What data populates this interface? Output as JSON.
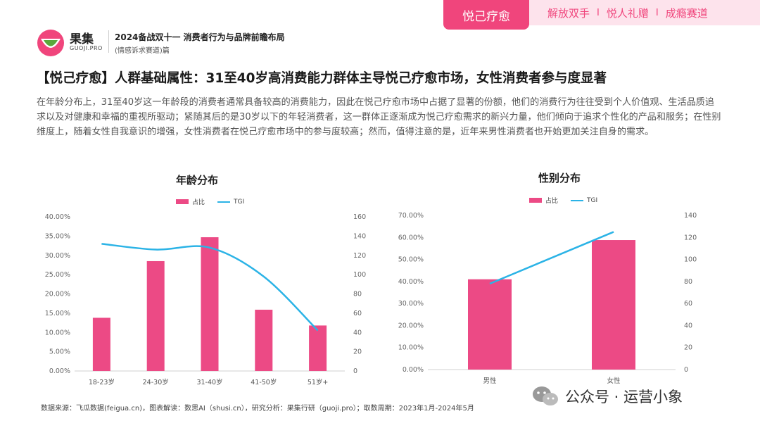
{
  "nav": {
    "active_tab": "悦己疗愈",
    "tabs": [
      "解放双手",
      "悦人礼赠",
      "成瘾赛道"
    ],
    "separator": "I"
  },
  "header": {
    "brand": "果集",
    "brand_en": "GUOJI.PRO",
    "report_title": "2024备战双十一 消费者行为与品牌前瞻布局",
    "report_sub": "(情感诉求赛道)篇"
  },
  "headline": "【悦己疗愈】人群基础属性：31至40岁高消费能力群体主导悦己疗愈市场，女性消费者参与度显著",
  "body_text": "在年龄分布上，31至40岁这一年龄段的消费者通常具备较高的消费能力，因此在悦己疗愈市场中占据了显著的份额，他们的消费行为往往受到个人价值观、生活品质追求以及对健康和幸福的重视所驱动；紧随其后的是30岁以下的年轻消费者，这一群体正逐渐成为悦己疗愈需求的新兴力量，他们倾向于追求个性化的产品和服务；在性别维度上，随着女性自我意识的增强，女性消费者在悦己疗愈市场中的参与度较高；然而，值得注意的是，近年来男性消费者也开始更加关注自身的需求。",
  "colors": {
    "accent": "#f0457c",
    "bar": "#ec4a85",
    "line": "#2bb3e6"
  },
  "chart_data": [
    {
      "type": "bar",
      "title": "年龄分布",
      "categories": [
        "18-23岁",
        "24-30岁",
        "31-40岁",
        "41-50岁",
        "51岁+"
      ],
      "series": [
        {
          "name": "占比",
          "type": "bar",
          "axis": "left",
          "values": [
            13.8,
            28.5,
            34.7,
            15.9,
            11.8
          ]
        },
        {
          "name": "TGI",
          "type": "line",
          "axis": "right",
          "values": [
            132,
            126,
            128,
            98,
            42
          ]
        }
      ],
      "ylim_left": [
        0,
        40
      ],
      "yticks_left": [
        "0.00%",
        "5.00%",
        "10.00%",
        "15.00%",
        "20.00%",
        "25.00%",
        "30.00%",
        "35.00%",
        "40.00%"
      ],
      "ylim_right": [
        0,
        160
      ],
      "yticks_right": [
        "0",
        "20",
        "40",
        "60",
        "80",
        "100",
        "120",
        "140",
        "160"
      ],
      "grid": false,
      "legend": "top-center"
    },
    {
      "type": "bar",
      "title": "性别分布",
      "categories": [
        "男性",
        "女性"
      ],
      "series": [
        {
          "name": "占比",
          "type": "bar",
          "axis": "left",
          "values": [
            41.0,
            58.8
          ]
        },
        {
          "name": "TGI",
          "type": "line",
          "axis": "right",
          "values": [
            78,
            125
          ]
        }
      ],
      "ylim_left": [
        0,
        70
      ],
      "yticks_left": [
        "0.00%",
        "10.00%",
        "20.00%",
        "30.00%",
        "40.00%",
        "50.00%",
        "60.00%",
        "70.00%"
      ],
      "ylim_right": [
        0,
        140
      ],
      "yticks_right": [
        "0",
        "20",
        "40",
        "60",
        "80",
        "100",
        "120",
        "140"
      ],
      "grid": false,
      "legend": "top-center"
    }
  ],
  "source": "数据来源：飞瓜数据(feigua.cn)，图表解读：数思AI（shusi.cn），研究分析：果集行研（guoji.pro）；取数周期：2023年1月-2024年5月",
  "watermark": {
    "label": "公众号 · 运营小象"
  }
}
